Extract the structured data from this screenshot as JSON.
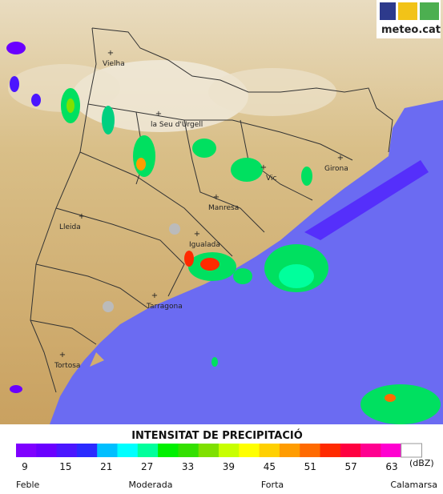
{
  "header": {
    "logo_text": "meteo.cat"
  },
  "map": {
    "places": [
      {
        "name": "Vielha"
      },
      {
        "name": "la Seu d'Urgell"
      },
      {
        "name": "Girona"
      },
      {
        "name": "Vic"
      },
      {
        "name": "Manresa"
      },
      {
        "name": "Lleida"
      },
      {
        "name": "Igualada"
      },
      {
        "name": "Tarragona"
      },
      {
        "name": "Tortosa"
      }
    ]
  },
  "legend": {
    "title": "INTENSITAT DE PRECIPITACIÓ",
    "colors": [
      "#7f00ff",
      "#6a00ff",
      "#4b16ff",
      "#2b2bff",
      "#00bfff",
      "#00ffff",
      "#00ff9c",
      "#00f000",
      "#33e000",
      "#7fe000",
      "#c8ff00",
      "#ffff00",
      "#ffd000",
      "#ff9c00",
      "#ff6a00",
      "#ff2a00",
      "#ff0040",
      "#ff0090",
      "#ff00d0",
      "#ffffff"
    ],
    "ticks": [
      9,
      15,
      21,
      27,
      33,
      39,
      45,
      51,
      57,
      63
    ],
    "unit": "(dBZ)",
    "categories": [
      "Feble",
      "Moderada",
      "Forta",
      "Calamarsa"
    ]
  }
}
